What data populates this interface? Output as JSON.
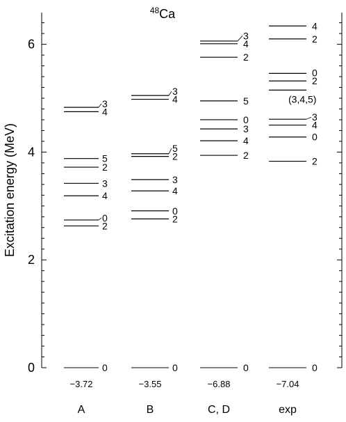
{
  "chart_data": {
    "type": "level-scheme",
    "title": "48Ca",
    "title_mass": "48",
    "title_element": "Ca",
    "ylabel": "Excitation energy (MeV)",
    "ylim": [
      0,
      6.6
    ],
    "yticks": [
      0,
      2,
      4,
      6
    ],
    "grid": false,
    "columns": [
      {
        "name": "A",
        "ground_state_energy": "−3.72",
        "levels": [
          {
            "energy": 0.0,
            "spin": "0"
          },
          {
            "energy": 2.63,
            "spin": "2"
          },
          {
            "energy": 2.74,
            "spin": "0"
          },
          {
            "energy": 3.19,
            "spin": "4"
          },
          {
            "energy": 3.42,
            "spin": "3"
          },
          {
            "energy": 3.72,
            "spin": "2"
          },
          {
            "energy": 3.88,
            "spin": "5"
          },
          {
            "energy": 4.75,
            "spin": "4"
          },
          {
            "energy": 4.83,
            "spin": "3"
          }
        ]
      },
      {
        "name": "B",
        "ground_state_energy": "−3.55",
        "levels": [
          {
            "energy": 0.0,
            "spin": "0"
          },
          {
            "energy": 2.76,
            "spin": "2"
          },
          {
            "energy": 2.91,
            "spin": "0"
          },
          {
            "energy": 3.28,
            "spin": "4"
          },
          {
            "energy": 3.49,
            "spin": "3"
          },
          {
            "energy": 3.92,
            "spin": "2"
          },
          {
            "energy": 3.97,
            "spin": "5"
          },
          {
            "energy": 4.98,
            "spin": "4"
          },
          {
            "energy": 5.05,
            "spin": "3"
          }
        ]
      },
      {
        "name": "C, D",
        "ground_state_energy": "−6.88",
        "levels": [
          {
            "energy": 0.0,
            "spin": "0"
          },
          {
            "energy": 3.94,
            "spin": "2"
          },
          {
            "energy": 4.21,
            "spin": "4"
          },
          {
            "energy": 4.43,
            "spin": "3"
          },
          {
            "energy": 4.6,
            "spin": "0"
          },
          {
            "energy": 4.95,
            "spin": "5"
          },
          {
            "energy": 5.76,
            "spin": "2"
          },
          {
            "energy": 6.01,
            "spin": "4"
          },
          {
            "energy": 6.06,
            "spin": "3"
          }
        ]
      },
      {
        "name": "exp",
        "ground_state_energy": "−7.04",
        "levels": [
          {
            "energy": 0.0,
            "spin": "0"
          },
          {
            "energy": 3.83,
            "spin": "2"
          },
          {
            "energy": 4.28,
            "spin": "0"
          },
          {
            "energy": 4.5,
            "spin": "4"
          },
          {
            "energy": 4.61,
            "spin": "3"
          },
          {
            "energy": 5.15,
            "spin": "(3,4,5)"
          },
          {
            "energy": 5.32,
            "spin": "2"
          },
          {
            "energy": 5.46,
            "spin": "0"
          },
          {
            "energy": 6.1,
            "spin": "2"
          },
          {
            "energy": 6.34,
            "spin": "4"
          }
        ]
      }
    ]
  }
}
